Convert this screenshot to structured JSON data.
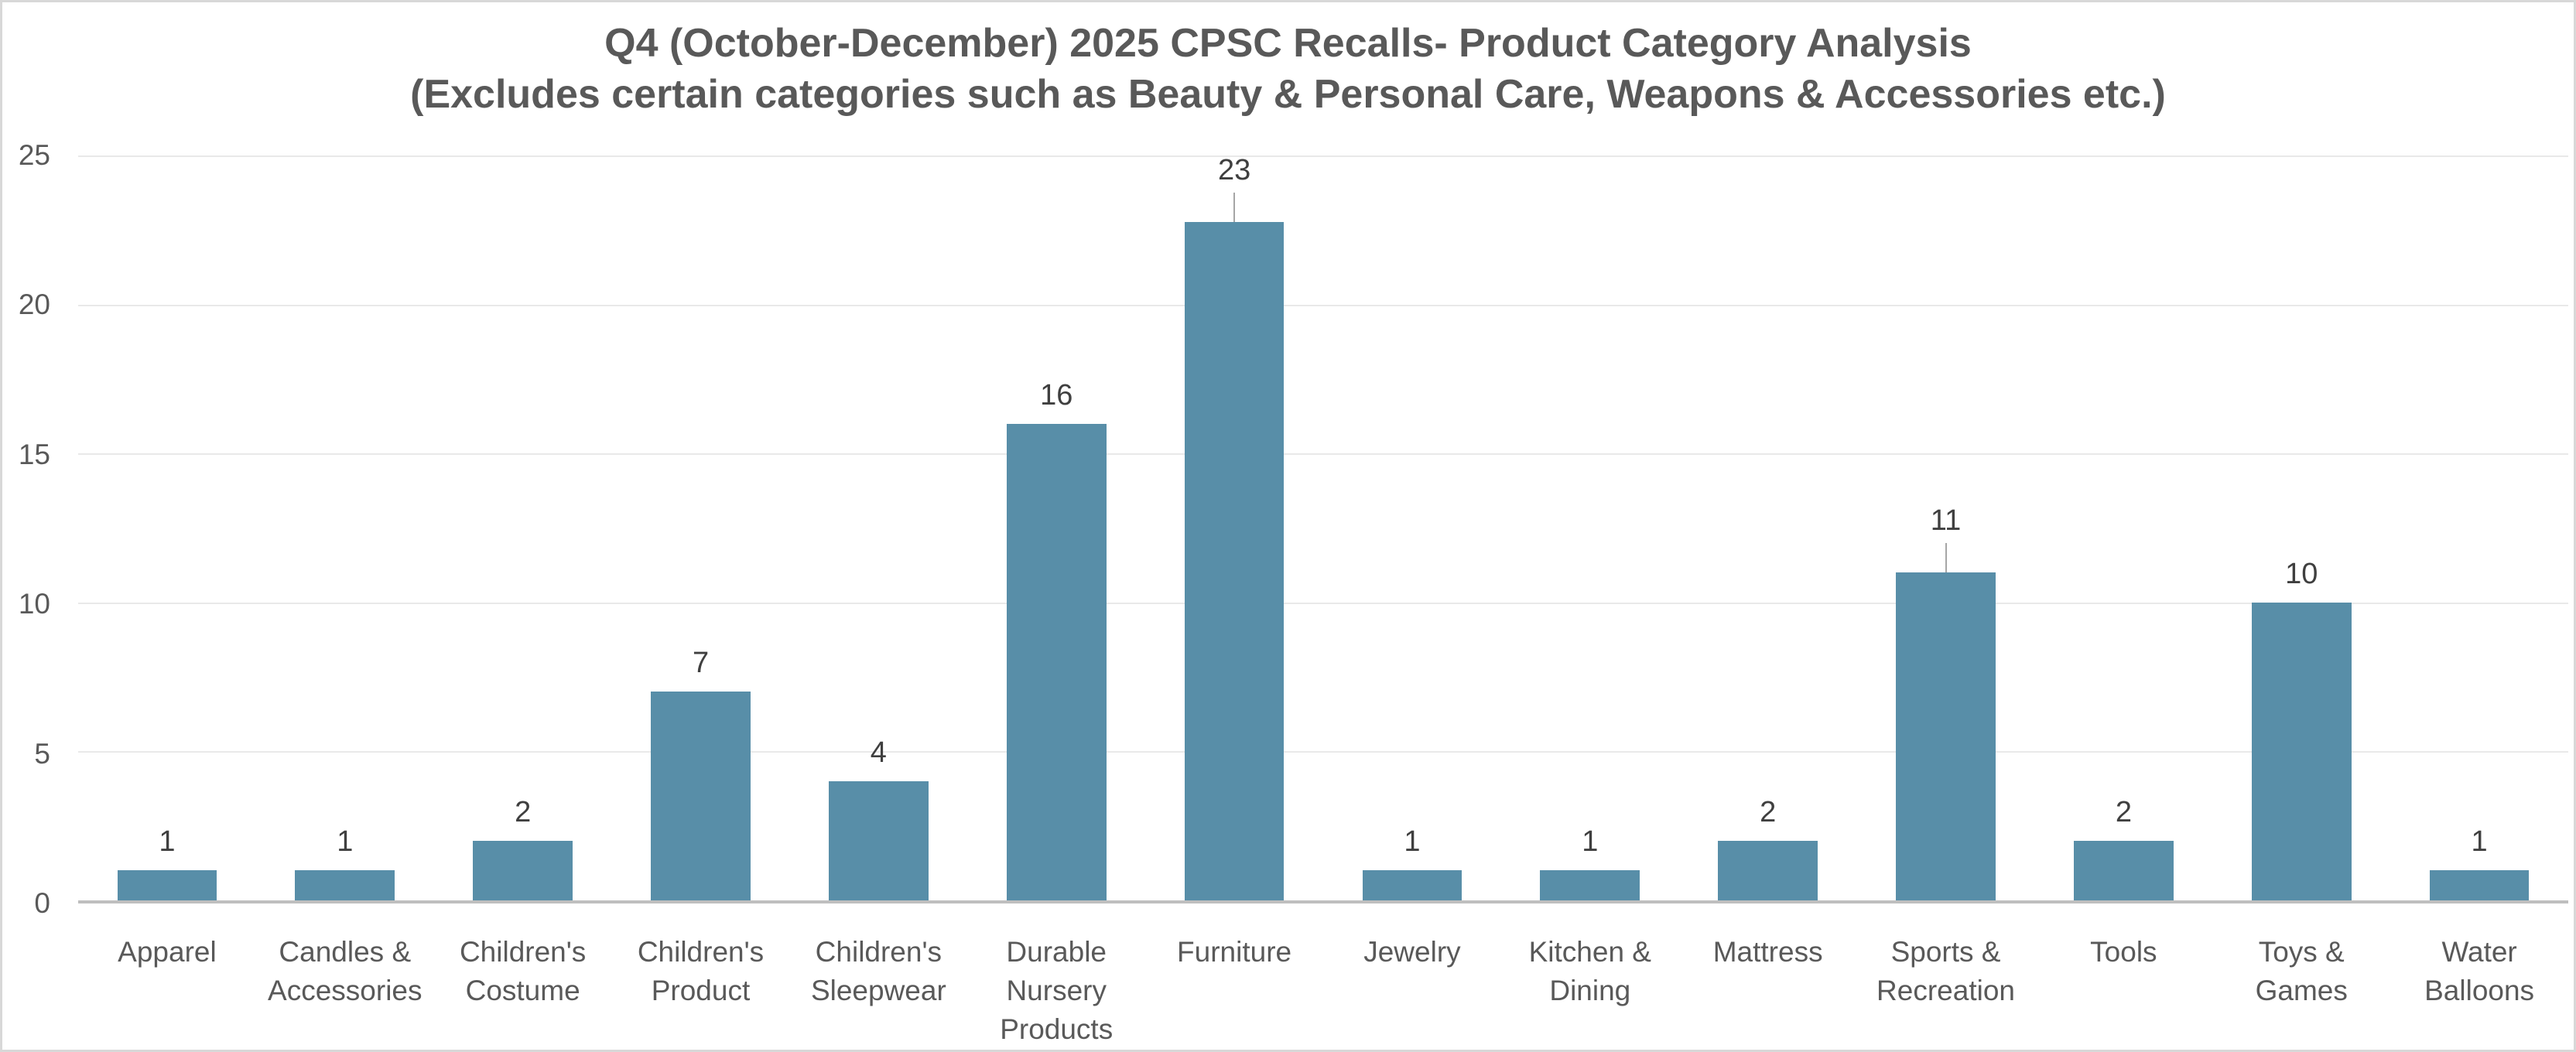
{
  "chart_data": {
    "type": "bar",
    "title": "Q4 (October-December) 2025 CPSC Recalls- Product Category Analysis",
    "subtitle": "(Excludes certain categories such as Beauty & Personal Care, Weapons & Accessories etc.)",
    "categories": [
      "Apparel",
      "Candles & Accessories",
      "Children's Costume",
      "Children's Product",
      "Children's Sleepwear",
      "Durable Nursery Products",
      "Furniture",
      "Jewelry",
      "Kitchen & Dining",
      "Mattress",
      "Sports & Recreation",
      "Tools",
      "Toys & Games",
      "Water Balloons"
    ],
    "values": [
      1,
      1,
      2,
      7,
      4,
      16,
      23,
      1,
      1,
      2,
      11,
      2,
      10,
      1
    ],
    "yticks": [
      25,
      20,
      15,
      10,
      5,
      0
    ],
    "ylim": [
      0,
      25
    ],
    "xlabel": "",
    "ylabel": "",
    "grid": true,
    "legend": false,
    "leader_line_indices": [
      6,
      10
    ],
    "bar_color": "#588ea8",
    "title_color": "#595959",
    "axis_label_color": "#595959",
    "data_label_color": "#3f3f3f",
    "gridline_color": "#e9e9e9",
    "baseline_color": "#bfbfbf"
  }
}
